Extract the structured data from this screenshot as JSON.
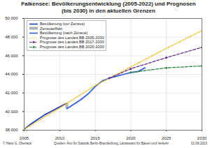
{
  "chart_data": {
    "type": "line",
    "title": "Falkensee: Bevölkerungsentwicklung (2005-2022) und Prognosen (bis 2030) in den aktuellen Grenzen",
    "credit": "© Hans G. Oberlack",
    "source": "Quellen: Amt für Statistik Berlin-Brandenburg, Landesamt für Bauen und Verkehr",
    "date": "01.08.2023",
    "series": [
      {
        "name": "Bevölkerung (vor Zensus)",
        "color": "#2040c0",
        "line_style": "solid",
        "marker": "none",
        "x": [
          2005,
          2006,
          2007,
          2008,
          2009,
          2010,
          2011
        ],
        "values": [
          38100,
          38700,
          39200,
          39700,
          40100,
          40500,
          40900
        ]
      },
      {
        "name": "Zensuseffekt",
        "type": "rule",
        "color": "#b0b0b0",
        "x": [
          2011
        ],
        "values": [
          40900
        ],
        "low": [
          40300
        ]
      },
      {
        "name": "Bevölkerung (nach Zensus)",
        "color": "#3060e0",
        "line_style": "solid",
        "marker": "none",
        "x": [
          2011,
          2012,
          2013,
          2014,
          2015,
          2016,
          2017,
          2018,
          2019,
          2020,
          2021,
          2022
        ],
        "values": [
          40300,
          40800,
          41300,
          41900,
          42700,
          43300,
          43600,
          43800,
          44000,
          44200,
          44300,
          44700
        ]
      },
      {
        "name": "Prognose des Landes BB 2005-2030",
        "color": "#f0b400",
        "line_style": "dotted",
        "marker": "none",
        "x": [
          2005,
          2010,
          2015,
          2020,
          2025,
          2030
        ],
        "values": [
          38100,
          40400,
          42800,
          44800,
          46800,
          48700
        ]
      },
      {
        "name": "Prognose des Landes BB 2017-2030",
        "color": "#6a2c8c",
        "line_style": "dashed",
        "marker": "circle",
        "x": [
          2017,
          2020,
          2025,
          2030
        ],
        "values": [
          43600,
          44600,
          45800,
          46900
        ]
      },
      {
        "name": "Prognose des Landes BB 2020-2030",
        "color": "#2e8b3e",
        "line_style": "dashed",
        "marker": "circle",
        "x": [
          2020,
          2025,
          2030
        ],
        "values": [
          44200,
          44700,
          44900
        ]
      }
    ],
    "xlim": [
      2005,
      2030
    ],
    "xticks": [
      2005,
      2010,
      2015,
      2020,
      2025,
      2030
    ],
    "ylim": [
      38000,
      50000
    ],
    "yticks": [
      {
        "value": 38000,
        "label": "38.000"
      },
      {
        "value": 40000,
        "label": "40.000"
      },
      {
        "value": 42000,
        "label": "42.000"
      },
      {
        "value": 44000,
        "label": "44.000"
      },
      {
        "value": 46000,
        "label": "46.000"
      },
      {
        "value": 48000,
        "label": "48.000"
      },
      {
        "value": 50000,
        "label": "50.000"
      }
    ],
    "grid": true,
    "legend": "top-left"
  }
}
